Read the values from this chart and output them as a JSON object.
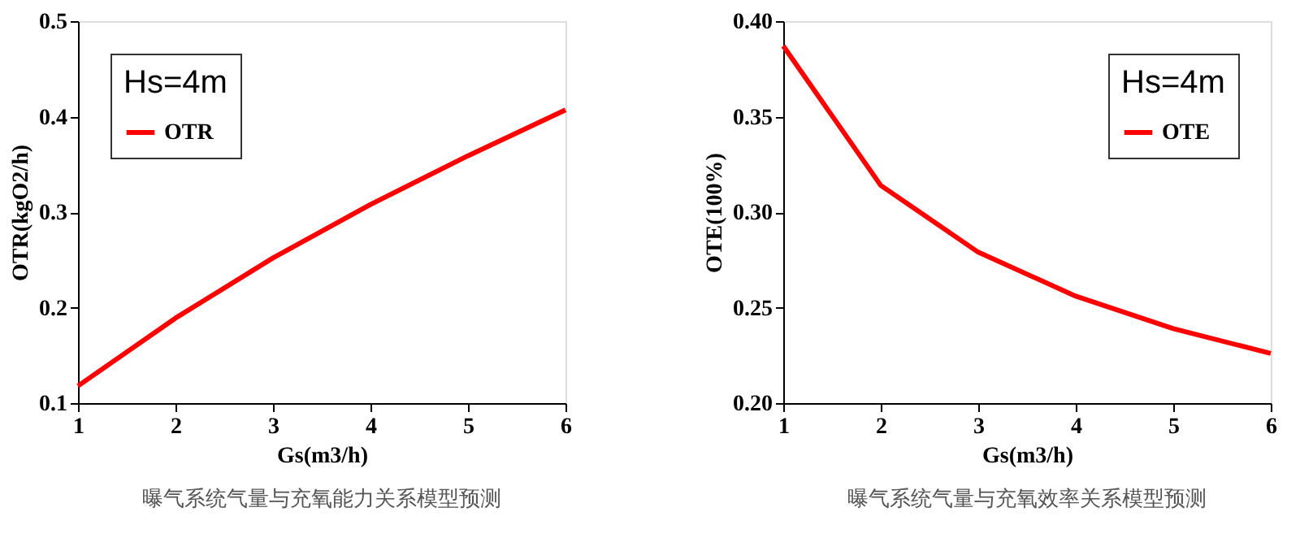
{
  "chart_data": [
    {
      "type": "line",
      "x": [
        1,
        2,
        3,
        4,
        5,
        6
      ],
      "xlabel": "Gs(m3/h)",
      "ylabel": "OTR(kgO2/h)",
      "legend_title": "Hs=4m",
      "legend": "top left",
      "grid": false,
      "marker": "none",
      "line_style": "solid",
      "xlim": [
        1,
        6
      ],
      "xticks": [
        1,
        2,
        3,
        4,
        5,
        6
      ],
      "ylim": [
        0.1,
        0.5
      ],
      "yticks": [
        0.1,
        0.2,
        0.3,
        0.4,
        0.5
      ],
      "annotations": [
        "曝气系统气量与充氧能力关系模型预测"
      ],
      "series": [
        {
          "name": "OTR",
          "color": "#ff0000",
          "values": [
            0.118,
            0.189,
            0.252,
            0.308,
            0.359,
            0.407
          ]
        }
      ]
    },
    {
      "type": "line",
      "x": [
        1,
        2,
        3,
        4,
        5,
        6
      ],
      "xlabel": "Gs(m3/h)",
      "ylabel": "OTE(100%)",
      "legend_title": "Hs=4m",
      "legend": "top right",
      "grid": false,
      "marker": "none",
      "line_style": "solid",
      "xlim": [
        1,
        6
      ],
      "xticks": [
        1,
        2,
        3,
        4,
        5,
        6
      ],
      "ylim": [
        0.2,
        0.4
      ],
      "yticks": [
        {
          "value": 0.2,
          "label": "0.20"
        },
        0.25,
        {
          "value": 0.3,
          "label": "0.30"
        },
        0.35,
        {
          "value": 0.4,
          "label": "0.40"
        }
      ],
      "annotations": [
        "曝气系统气量与充氧效率关系模型预测"
      ],
      "series": [
        {
          "name": "OTE",
          "color": "#ff0000",
          "values": [
            0.387,
            0.314,
            0.279,
            0.256,
            0.239,
            0.226
          ]
        }
      ]
    }
  ]
}
